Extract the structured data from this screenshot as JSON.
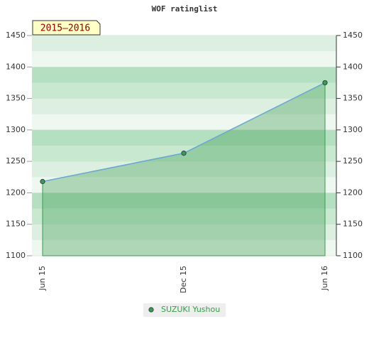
{
  "chart_data": {
    "type": "area",
    "title": "WOF ratinglist",
    "annotation": "2015–2016",
    "categories": [
      "Jun 15",
      "Dec 15",
      "Jun 16"
    ],
    "series": [
      {
        "name": "SUZUKI Yushou",
        "color": "#3a9a4e",
        "values": [
          1218,
          1263,
          1375
        ]
      }
    ],
    "ylim": [
      1100,
      1450
    ],
    "yticks": [
      1100,
      1150,
      1200,
      1250,
      1300,
      1350,
      1400,
      1450
    ],
    "y2lim": [
      1100,
      1450
    ],
    "y2ticks": [
      1100,
      1150,
      1200,
      1250,
      1300,
      1350,
      1400,
      1450
    ],
    "grid": true
  }
}
